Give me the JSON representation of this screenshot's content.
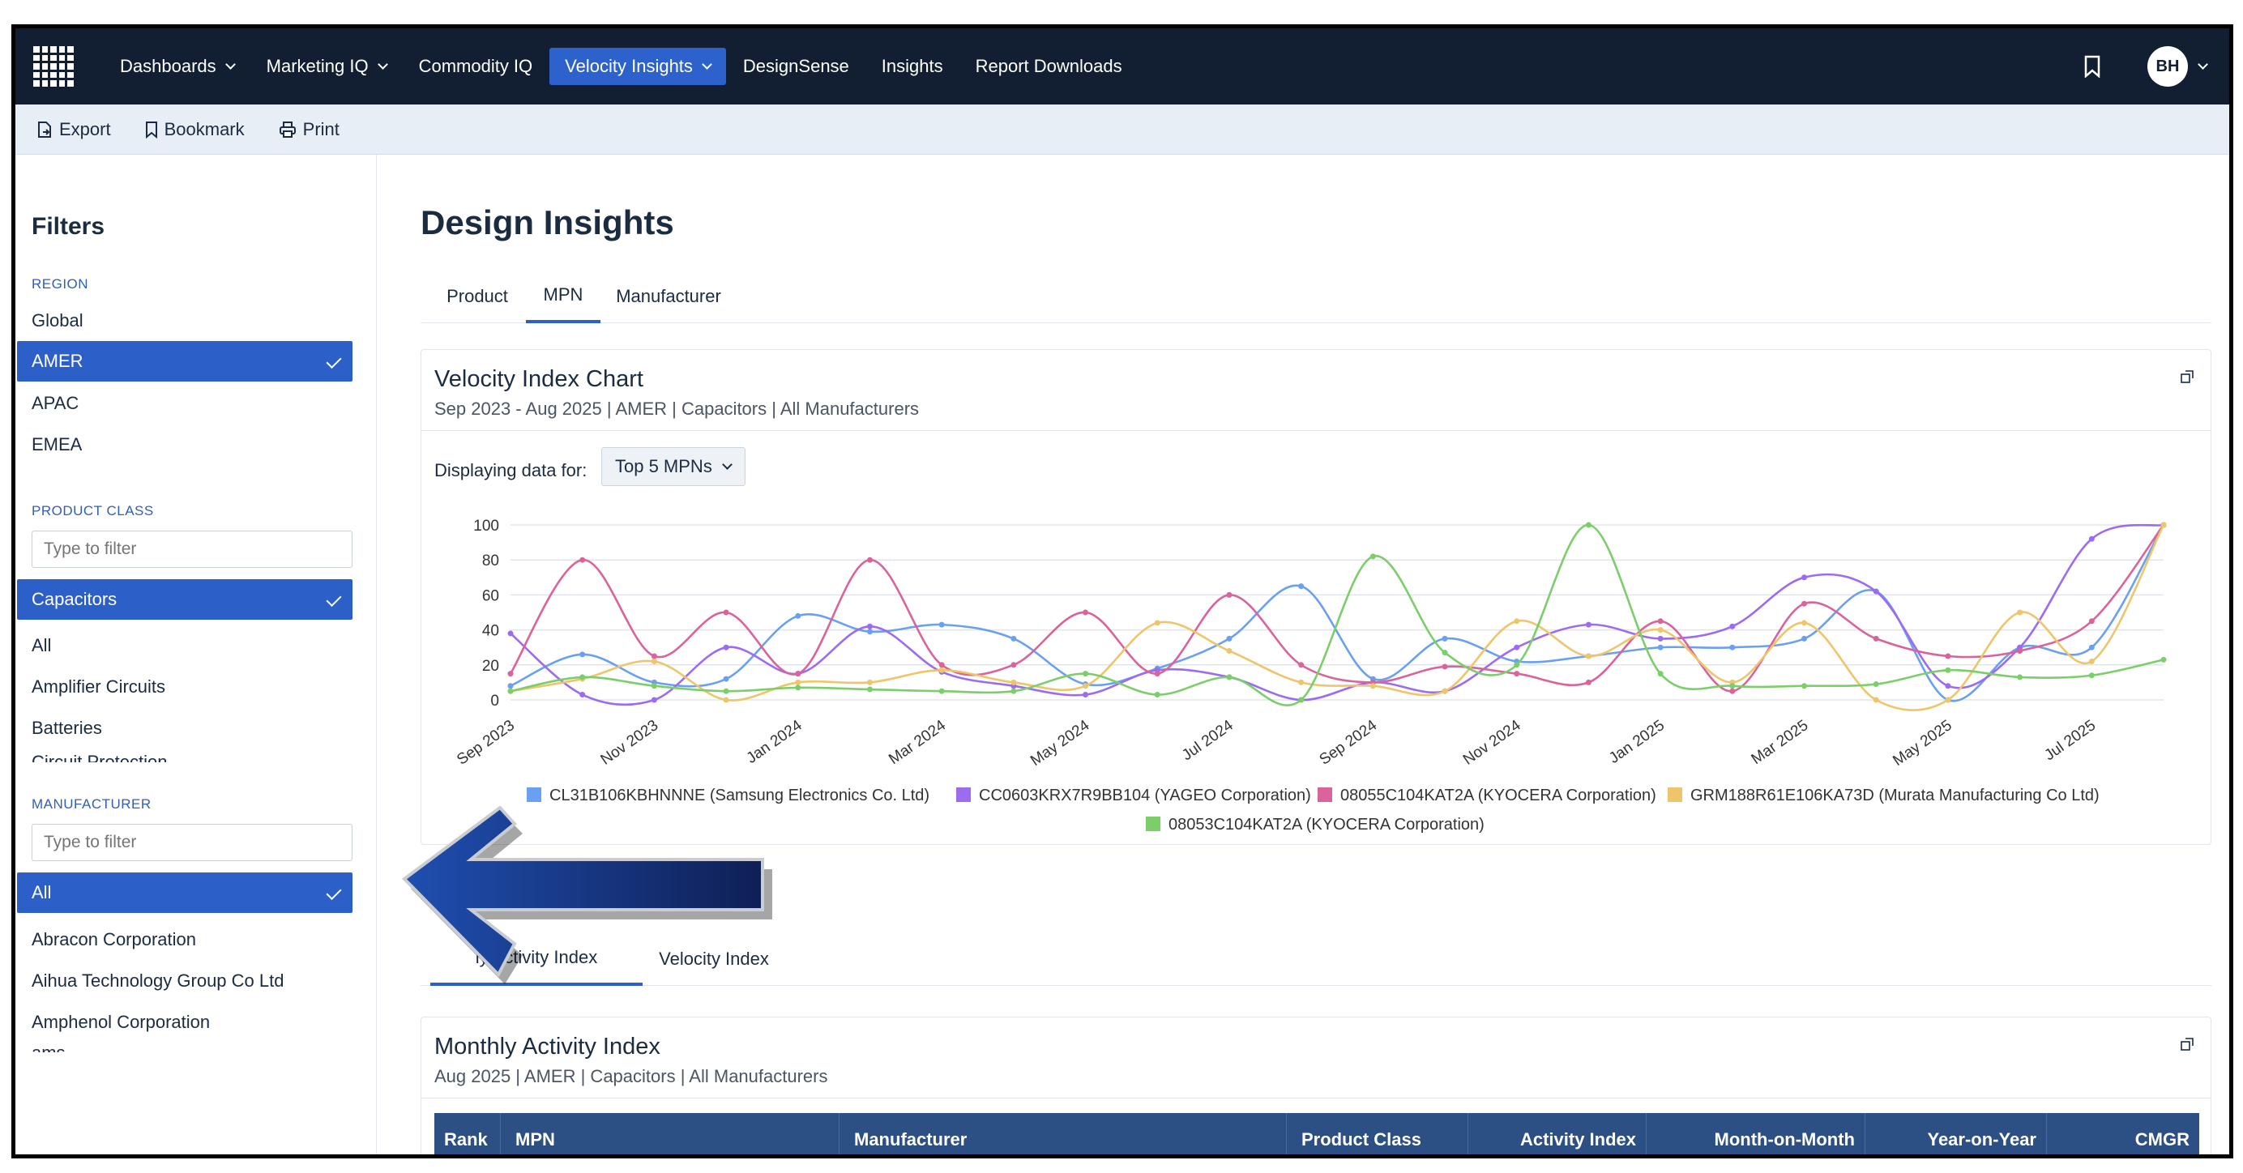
{
  "nav": {
    "items": [
      {
        "label": "Dashboards",
        "dropdown": true
      },
      {
        "label": "Marketing IQ",
        "dropdown": true
      },
      {
        "label": "Commodity IQ",
        "dropdown": false
      },
      {
        "label": "Velocity Insights",
        "dropdown": true,
        "active": true
      },
      {
        "label": "DesignSense",
        "dropdown": false
      },
      {
        "label": "Insights",
        "dropdown": false
      },
      {
        "label": "Report Downloads",
        "dropdown": false
      }
    ],
    "avatar_initials": "BH",
    "accent": "#2d62cc",
    "background": "#121f33"
  },
  "toolbar": {
    "export_label": "Export",
    "bookmark_label": "Bookmark",
    "print_label": "Print"
  },
  "filters": {
    "title": "Filters",
    "region": {
      "label": "REGION",
      "options": [
        "Global",
        "AMER",
        "APAC",
        "EMEA"
      ],
      "selected": "AMER"
    },
    "product_class": {
      "label": "PRODUCT CLASS",
      "placeholder": "Type to filter",
      "selected": "Capacitors",
      "options": [
        "All",
        "Amplifier Circuits",
        "Batteries",
        "Circuit Protection"
      ]
    },
    "manufacturer": {
      "label": "MANUFACTURER",
      "placeholder": "Type to filter",
      "selected": "All",
      "options": [
        "Abracon Corporation",
        "Aihua Technology Group Co Ltd",
        "Amphenol Corporation",
        "ams"
      ]
    }
  },
  "main": {
    "title": "Design Insights",
    "tabs": [
      "Product",
      "MPN",
      "Manufacturer"
    ],
    "active_tab": "MPN",
    "velocity_card": {
      "title": "Velocity Index Chart",
      "subtitle": "Sep 2023 - Aug 2025 | AMER | Capacitors | All Manufacturers",
      "display_label": "Displaying data for:",
      "display_value": "Top 5 MPNs"
    },
    "sub_tabs": [
      "Monthly Activity Index",
      "Velocity Index"
    ],
    "sub_tab_partial_label": "ly Activity Index",
    "activity_card": {
      "title": "Monthly Activity Index",
      "subtitle": "Aug 2025 | AMER | Capacitors | All Manufacturers",
      "columns": [
        "Rank",
        "MPN",
        "Manufacturer",
        "Product Class",
        "Activity Index",
        "Month-on-Month",
        "Year-on-Year",
        "CMGR"
      ]
    }
  },
  "chart_data": {
    "type": "line",
    "x": [
      "Sep 2023",
      "Oct 2023",
      "Nov 2023",
      "Dec 2023",
      "Jan 2024",
      "Feb 2024",
      "Mar 2024",
      "Apr 2024",
      "May 2024",
      "Jun 2024",
      "Jul 2024",
      "Aug 2024",
      "Sep 2024",
      "Oct 2024",
      "Nov 2024",
      "Dec 2024",
      "Jan 2025",
      "Feb 2025",
      "Mar 2025",
      "Apr 2025",
      "May 2025",
      "Jun 2025",
      "Jul 2025",
      "Aug 2025"
    ],
    "xticks": [
      "Sep 2023",
      "Nov 2023",
      "Jan 2024",
      "Mar 2024",
      "May 2024",
      "Jul 2024",
      "Sep 2024",
      "Nov 2024",
      "Jan 2025",
      "Mar 2025",
      "May 2025",
      "Jul 2025"
    ],
    "ylim": [
      0,
      100
    ],
    "yticks": [
      0,
      20,
      40,
      60,
      80,
      100
    ],
    "grid": true,
    "legend_position": "bottom",
    "series": [
      {
        "name": "CL31B106KBHNNNE (Samsung Electronics Co. Ltd)",
        "color": "#6aa0f0",
        "values": [
          8,
          26,
          10,
          12,
          48,
          39,
          43,
          35,
          9,
          18,
          35,
          65,
          12,
          35,
          22,
          25,
          30,
          30,
          35,
          62,
          0,
          30,
          30,
          100
        ]
      },
      {
        "name": "CC0603KRX7R9BB104 (YAGEO Corporation)",
        "color": "#9c6cf0",
        "values": [
          38,
          3,
          0,
          30,
          15,
          42,
          16,
          8,
          3,
          17,
          13,
          0,
          10,
          5,
          30,
          43,
          35,
          42,
          70,
          62,
          8,
          30,
          92,
          100
        ]
      },
      {
        "name": "08055C104KAT2A (KYOCERA Corporation)",
        "color": "#d9639a",
        "values": [
          15,
          80,
          25,
          50,
          15,
          80,
          20,
          20,
          50,
          15,
          60,
          20,
          10,
          19,
          15,
          10,
          45,
          5,
          55,
          35,
          25,
          28,
          45,
          100
        ]
      },
      {
        "name": "GRM188R61E106KA73D (Murata Manufacturing Co Ltd)",
        "color": "#eec56a",
        "values": [
          5,
          12,
          22,
          0,
          10,
          10,
          17,
          10,
          8,
          44,
          28,
          10,
          8,
          5,
          45,
          25,
          40,
          10,
          44,
          0,
          0,
          50,
          22,
          100
        ]
      },
      {
        "name": "08053C104KAT2A (KYOCERA Corporation)",
        "color": "#7bce6a",
        "values": [
          5,
          13,
          8,
          5,
          7,
          6,
          5,
          5,
          15,
          3,
          13,
          0,
          82,
          27,
          20,
          100,
          15,
          8,
          8,
          9,
          17,
          13,
          14,
          23
        ]
      }
    ]
  }
}
